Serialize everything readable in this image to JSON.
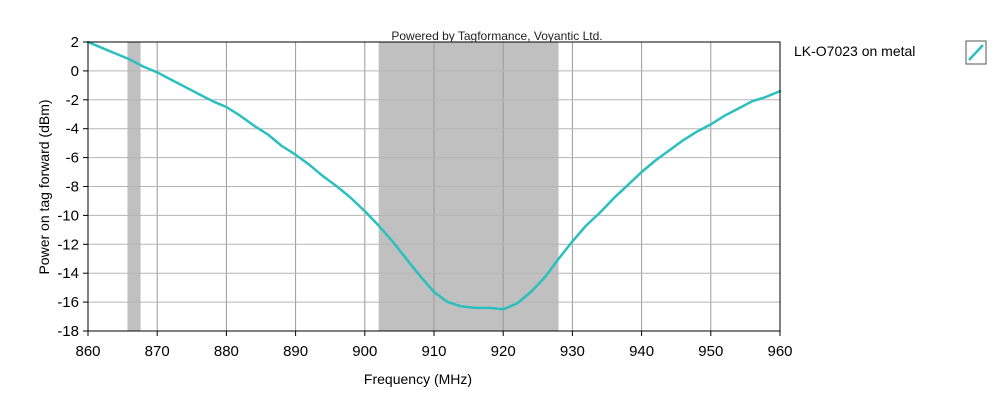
{
  "credit": "Powered by Tagformance, Voyantic Ltd.",
  "chart_data": {
    "type": "line",
    "title": "",
    "xlabel": "Frequency (MHz)",
    "ylabel": "Power on tag forward (dBm)",
    "xlim": [
      860,
      960
    ],
    "ylim": [
      -18,
      2
    ],
    "xticks": [
      860,
      870,
      880,
      890,
      900,
      910,
      920,
      930,
      940,
      950,
      960
    ],
    "yticks": [
      2,
      0,
      -2,
      -4,
      -6,
      -8,
      -10,
      -12,
      -14,
      -16,
      -18
    ],
    "x_tick_labels": [
      "860",
      "870",
      "880",
      "890",
      "900",
      "910",
      "920",
      "930",
      "940",
      "950",
      "960"
    ],
    "y_tick_labels": [
      "2",
      "0",
      "-2",
      "-4",
      "-6",
      "-8",
      "-10",
      "-12",
      "-14",
      "-16",
      "-18"
    ],
    "grid": true,
    "legend_position": "right",
    "shaded_bands": [
      {
        "from": 865.7,
        "to": 867.6
      },
      {
        "from": 902,
        "to": 928
      }
    ],
    "series": [
      {
        "name": "LK-O7023 on metal",
        "color": "#2bbfbf",
        "x": [
          860,
          862,
          864,
          866,
          868,
          870,
          872,
          874,
          876,
          878,
          880,
          882,
          884,
          886,
          888,
          890,
          892,
          894,
          896,
          898,
          900,
          902,
          904,
          906,
          908,
          910,
          912,
          914,
          916,
          918,
          920,
          922,
          924,
          926,
          928,
          930,
          932,
          934,
          936,
          938,
          940,
          942,
          944,
          946,
          948,
          950,
          952,
          954,
          956,
          958,
          960
        ],
        "values": [
          2.0,
          1.6,
          1.2,
          0.8,
          0.3,
          -0.1,
          -0.6,
          -1.1,
          -1.6,
          -2.1,
          -2.5,
          -3.1,
          -3.8,
          -4.4,
          -5.2,
          -5.8,
          -6.5,
          -7.3,
          -8.0,
          -8.8,
          -9.7,
          -10.7,
          -11.8,
          -13.0,
          -14.2,
          -15.3,
          -16.0,
          -16.3,
          -16.4,
          -16.4,
          -16.5,
          -16.1,
          -15.3,
          -14.3,
          -13.0,
          -11.8,
          -10.7,
          -9.8,
          -8.8,
          -7.9,
          -7.0,
          -6.2,
          -5.5,
          -4.8,
          -4.2,
          -3.7,
          -3.1,
          -2.6,
          -2.1,
          -1.8,
          -1.4
        ]
      }
    ]
  }
}
